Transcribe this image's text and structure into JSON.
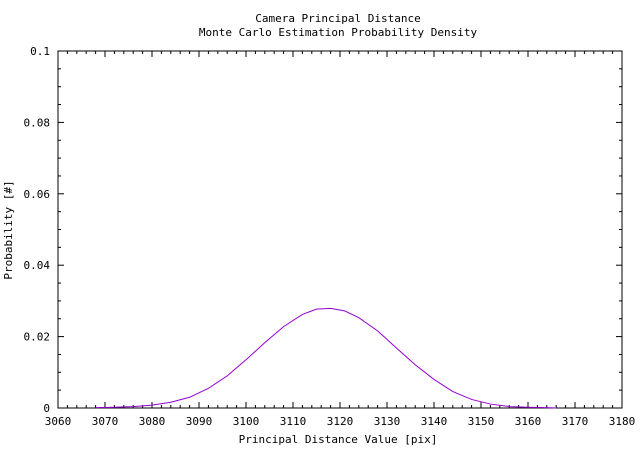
{
  "chart_data": {
    "type": "line",
    "title": "Camera Principal Distance",
    "subtitle": "Monte Carlo Estimation Probability Density",
    "xlabel": "Principal Distance Value [pix]",
    "ylabel": "Probability [#]",
    "xlim": [
      3060,
      3180
    ],
    "ylim": [
      0,
      0.1
    ],
    "grid": false,
    "legend": "none",
    "x_ticks": [
      3060,
      3070,
      3080,
      3090,
      3100,
      3110,
      3120,
      3130,
      3140,
      3150,
      3160,
      3170,
      3180
    ],
    "x_tick_labels": [
      "3060",
      "3070",
      "3080",
      "3090",
      "3100",
      "3110",
      "3120",
      "3130",
      "3140",
      "3150",
      "3160",
      "3170",
      "3180"
    ],
    "y_ticks": [
      0,
      0.02,
      0.04,
      0.06,
      0.08,
      0.1
    ],
    "y_tick_labels": [
      "0",
      "0.02",
      "0.04",
      "0.06",
      "0.08",
      "0.1"
    ],
    "series": [
      {
        "color": "#9400d3",
        "x": [
          3068,
          3072,
          3076,
          3080,
          3084,
          3088,
          3092,
          3096,
          3100,
          3104,
          3108,
          3112,
          3115,
          3118,
          3121,
          3124,
          3128,
          3132,
          3136,
          3140,
          3144,
          3148,
          3152,
          3156,
          3160,
          3164,
          3166
        ],
        "y": [
          0.0001,
          0.0002,
          0.0004,
          0.0008,
          0.0016,
          0.003,
          0.0055,
          0.009,
          0.0135,
          0.0183,
          0.0228,
          0.0262,
          0.0277,
          0.0279,
          0.0272,
          0.0253,
          0.0216,
          0.0168,
          0.0121,
          0.008,
          0.0046,
          0.0024,
          0.0011,
          0.0004,
          0.0002,
          0.0001,
          0.0
        ]
      }
    ]
  }
}
